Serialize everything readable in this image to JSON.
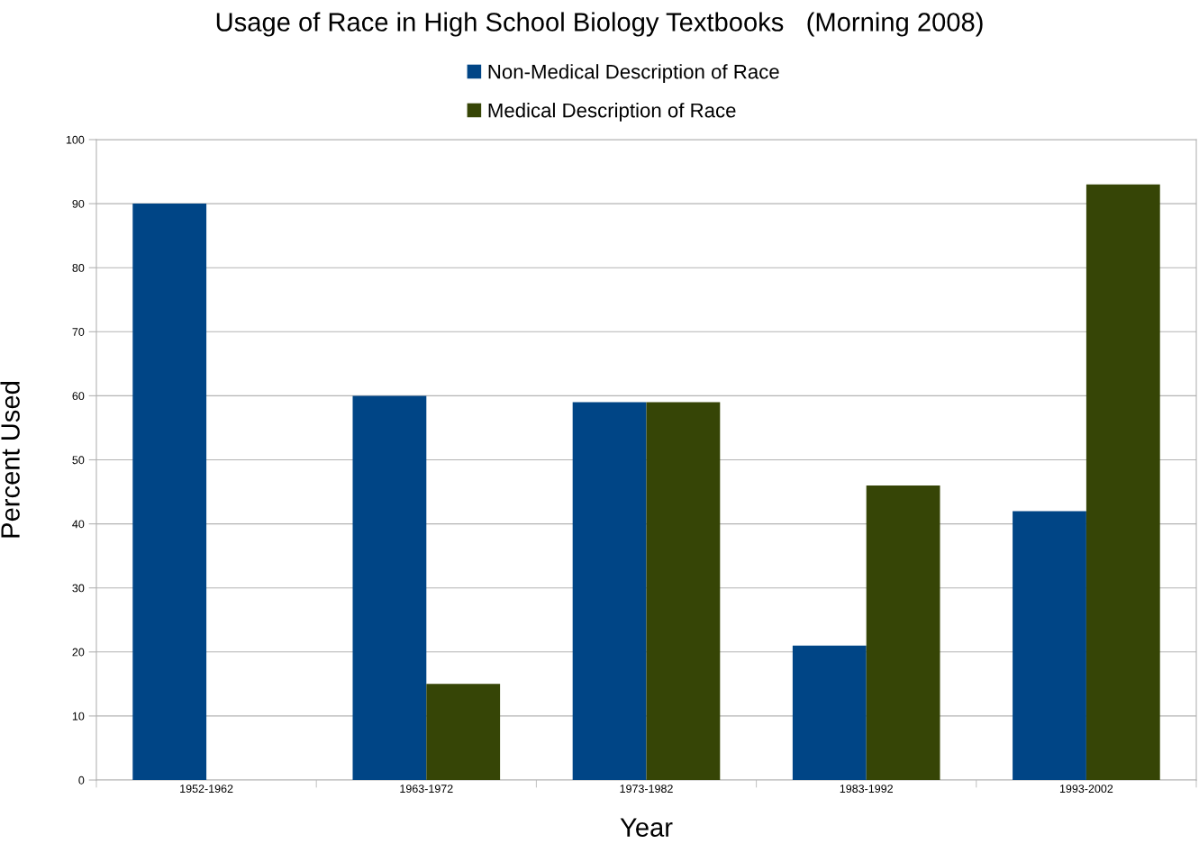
{
  "chart_data": {
    "type": "bar",
    "title": "Usage of Race in High School Biology Textbooks   (Morning 2008)",
    "xlabel": "Year",
    "ylabel": "Percent Used",
    "categories": [
      "1952-1962",
      "1963-1972",
      "1973-1982",
      "1983-1992",
      "1993-2002"
    ],
    "series": [
      {
        "name": "Non-Medical Description of Race",
        "color": "#004586",
        "values": [
          90,
          60,
          59,
          21,
          42
        ]
      },
      {
        "name": "Medical Description of Race",
        "color": "#364506",
        "values": [
          0,
          15,
          59,
          46,
          93
        ]
      }
    ],
    "ylim": [
      0,
      100
    ],
    "yticks": [
      0,
      10,
      20,
      30,
      40,
      50,
      60,
      70,
      80,
      90,
      100
    ],
    "grid": "y",
    "legend": "top"
  }
}
